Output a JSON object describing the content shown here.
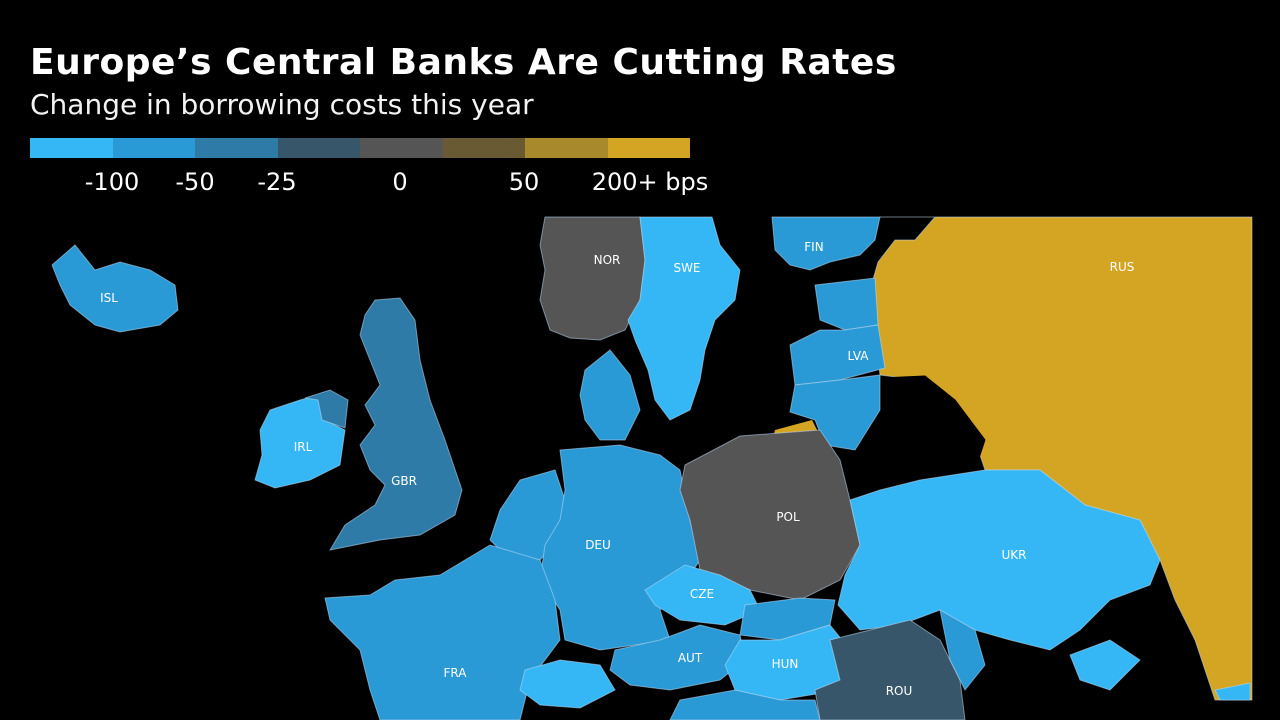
{
  "header": {
    "title": "Europe’s Central Banks Are Cutting Rates",
    "subtitle": "Change in borrowing costs this year"
  },
  "legend": {
    "swatches": [
      {
        "color": "#35b7f5"
      },
      {
        "color": "#2a9ad6"
      },
      {
        "color": "#2f7ba8"
      },
      {
        "color": "#385669"
      },
      {
        "color": "#555555"
      },
      {
        "color": "#6a5a34"
      },
      {
        "color": "#a88a2c"
      },
      {
        "color": "#d4a423"
      }
    ],
    "labels": [
      "-100",
      "-50",
      "-25",
      "0",
      "50",
      "200+ bps"
    ]
  },
  "colors": {
    "background": "#000000",
    "neg100": "#35b7f5",
    "neg75": "#2a9ad6",
    "neg50": "#2f7ba8",
    "neg25": "#385669",
    "zero": "#555555",
    "pos200": "#d4a423"
  },
  "countries": [
    {
      "code": "ISL",
      "category": "-50"
    },
    {
      "code": "NOR",
      "category": "0"
    },
    {
      "code": "SWE",
      "category": "-100"
    },
    {
      "code": "FIN",
      "category": "-75"
    },
    {
      "code": "RUS",
      "category": "200+"
    },
    {
      "code": "LVA",
      "category": "-75"
    },
    {
      "code": "IRL",
      "category": "-75"
    },
    {
      "code": "GBR",
      "category": "-25"
    },
    {
      "code": "DEU",
      "category": "-75"
    },
    {
      "code": "POL",
      "category": "0"
    },
    {
      "code": "UKR",
      "category": "-100"
    },
    {
      "code": "CZE",
      "category": "-100"
    },
    {
      "code": "FRA",
      "category": "-75"
    },
    {
      "code": "AUT",
      "category": "-75"
    },
    {
      "code": "HUN",
      "category": "-100"
    },
    {
      "code": "ROU",
      "category": "-25"
    }
  ],
  "labels": {
    "ISL": "ISL",
    "NOR": "NOR",
    "SWE": "SWE",
    "FIN": "FIN",
    "RUS": "RUS",
    "LVA": "LVA",
    "IRL": "IRL",
    "GBR": "GBR",
    "DEU": "DEU",
    "POL": "POL",
    "UKR": "UKR",
    "CZE": "CZE",
    "FRA": "FRA",
    "AUT": "AUT",
    "HUN": "HUN",
    "ROU": "ROU"
  }
}
